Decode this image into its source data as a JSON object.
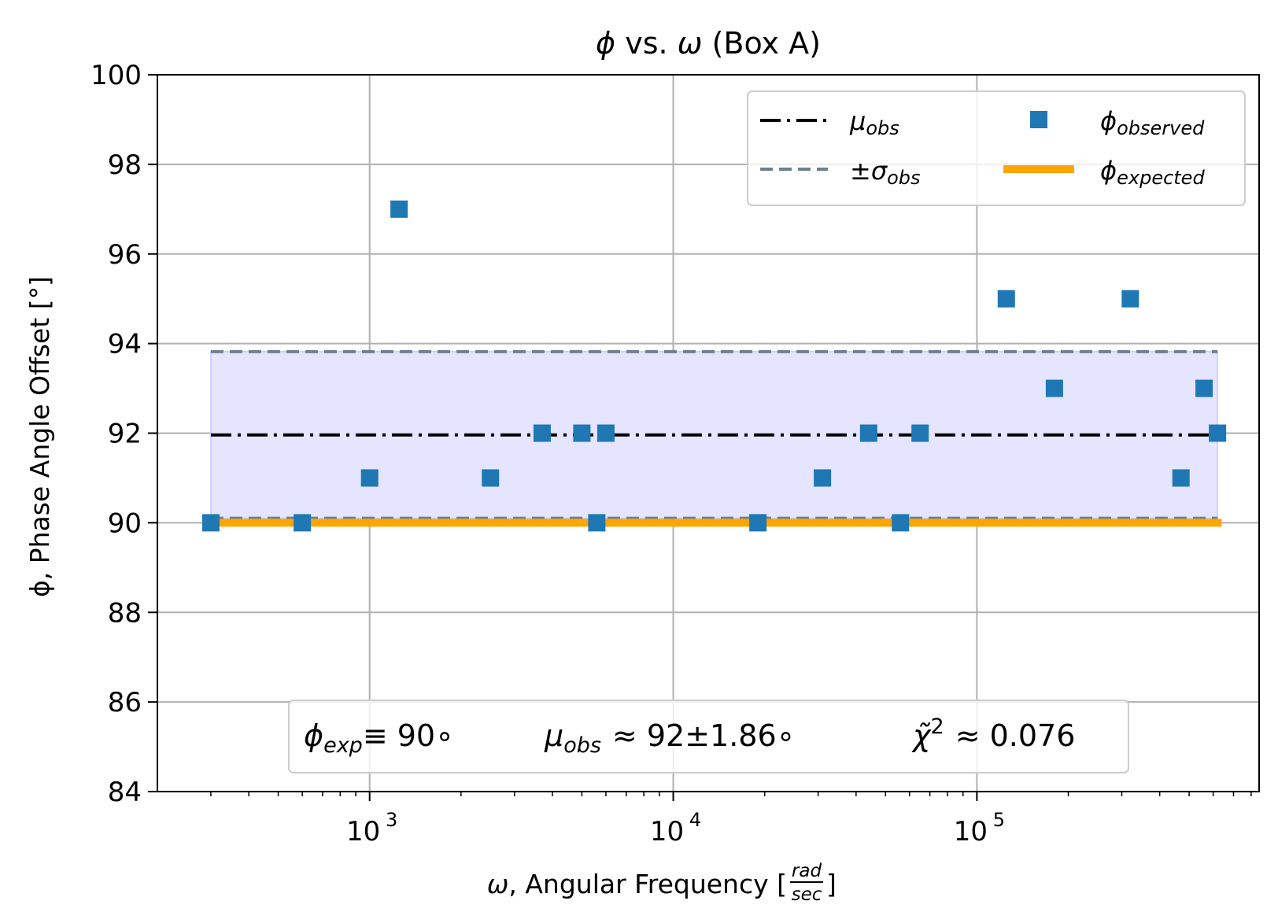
{
  "chart_data": {
    "type": "scatter",
    "title_parts": [
      "ϕ",
      " vs. ",
      "ω",
      " (Box A)"
    ],
    "xlabel_parts": [
      "ω",
      ", Angular Frequency ["
    ],
    "xlabel_unit_num": "rad",
    "xlabel_unit_den": "sec",
    "xlabel_close": "]",
    "ylabel": "ϕ, Phase Angle Offset [°]",
    "x_scale": "log",
    "xlim": [
      200,
      850000
    ],
    "ylim": [
      84,
      100
    ],
    "y_ticks": [
      84,
      86,
      88,
      90,
      92,
      94,
      96,
      98,
      100
    ],
    "y_tick_labels": [
      "84",
      "86",
      "88",
      "90",
      "92",
      "94",
      "96",
      "98",
      "100"
    ],
    "x_ticks": [
      1000,
      10000,
      100000
    ],
    "x_tick_labels": [
      {
        "base": "10",
        "exp": "3"
      },
      {
        "base": "10",
        "exp": "4"
      },
      {
        "base": "10",
        "exp": "5"
      }
    ],
    "grid": true,
    "legend_position": "top-right",
    "legend": {
      "mu_obs": {
        "symbol": "μ",
        "sub": "obs"
      },
      "sigma_obs": {
        "symbol": "±σ",
        "sub": "obs"
      },
      "phi_observed": {
        "symbol": "ϕ",
        "sub": "observed"
      },
      "phi_expected": {
        "symbol": "ϕ",
        "sub": "expected"
      }
    },
    "series": [
      {
        "kind": "scatter",
        "marker": "square",
        "color": "#1f77b4",
        "x": [
          300,
          600,
          1000,
          1250,
          2500,
          3700,
          5000,
          5600,
          6000,
          19000,
          31000,
          44000,
          56000,
          65000,
          125000,
          180000,
          320000,
          470000,
          560000,
          620000
        ],
        "y": [
          90,
          90,
          91,
          97,
          91,
          92,
          92,
          90,
          92,
          90,
          91,
          92,
          90,
          92,
          95,
          93,
          95,
          91,
          93,
          92
        ]
      },
      {
        "kind": "hline",
        "style": "dashdot",
        "color": "#000000",
        "y": 91.96,
        "x_range": [
          300,
          620000
        ]
      },
      {
        "kind": "band",
        "style": "dashed",
        "color": "#708090",
        "fill": "#e5e5ff",
        "y_low": 90.1,
        "y_high": 93.82,
        "x_range": [
          300,
          620000
        ]
      },
      {
        "kind": "hline",
        "style": "solid",
        "color": "#ffa500",
        "y": 90,
        "x_range": [
          300,
          640000
        ]
      }
    ],
    "annotation": {
      "phi_exp": {
        "symbol": "ϕ",
        "sub": "exp",
        "text": "≡ 90∘"
      },
      "mu_obs": {
        "symbol": "μ",
        "sub": "obs",
        "text": "≈ 92±1.86∘"
      },
      "chi2": {
        "symbol": "χ̃",
        "sup": "2",
        "text": "≈ 0.076"
      }
    }
  }
}
